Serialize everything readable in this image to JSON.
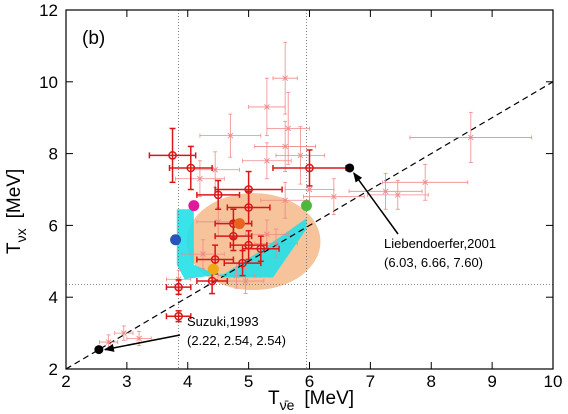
{
  "chart_data": {
    "type": "scatter",
    "panel_label": "(b)",
    "xlabel": "T",
    "xlabel_sub": "ν̄e",
    "xlabel_unit": "[MeV]",
    "ylabel": "T",
    "ylabel_sub": "νx",
    "ylabel_unit": "[MeV]",
    "xlim": [
      2,
      10
    ],
    "ylim": [
      2,
      12
    ],
    "xticks": [
      "2",
      "3",
      "4",
      "5",
      "6",
      "7",
      "8",
      "9",
      "10"
    ],
    "yticks": [
      "2",
      "4",
      "6",
      "8",
      "10",
      "12"
    ],
    "grid": false,
    "reference_lines": {
      "diagonal": {
        "slope": 1.0,
        "intercept": 0
      },
      "vertical_dotted": [
        3.85,
        5.95
      ],
      "horizontal_dotted": [
        4.35
      ]
    },
    "regions": {
      "ellipse": {
        "cx": 5.08,
        "cy": 5.55,
        "rx": 1.1,
        "ry": 1.35,
        "color": "#f4b88a"
      },
      "cyan_patch": [
        [
          3.82,
          6.45
        ],
        [
          4.1,
          6.45
        ],
        [
          4.1,
          4.9
        ],
        [
          4.6,
          4.55
        ],
        [
          5.4,
          4.55
        ],
        [
          5.95,
          5.9
        ],
        [
          5.95,
          6.2
        ],
        [
          5.2,
          5.3
        ],
        [
          4.6,
          4.65
        ],
        [
          3.95,
          4.5
        ],
        [
          3.82,
          4.9
        ]
      ],
      "cyan_color": "#22e0e8"
    },
    "colored_points": [
      {
        "x": 4.1,
        "y": 6.55,
        "color": "#e0199a"
      },
      {
        "x": 3.8,
        "y": 5.6,
        "color": "#2a55b8"
      },
      {
        "x": 4.85,
        "y": 6.05,
        "color": "#e8641e"
      },
      {
        "x": 5.95,
        "y": 6.55,
        "color": "#4cb83c"
      },
      {
        "x": 4.42,
        "y": 4.78,
        "color": "#f0a818"
      }
    ],
    "red_points": [
      {
        "x": 3.75,
        "y": 7.95,
        "xerr": 0.38,
        "yerr": 0.75
      },
      {
        "x": 4.05,
        "y": 7.6,
        "xerr": 0.35,
        "yerr": 0.6
      },
      {
        "x": 5.0,
        "y": 7.0,
        "xerr": 0.55,
        "yerr": 0.5
      },
      {
        "x": 6.0,
        "y": 7.6,
        "xerr": 0.6,
        "yerr": 0.5
      },
      {
        "x": 4.5,
        "y": 6.85,
        "xerr": 0.35,
        "yerr": 0.4
      },
      {
        "x": 5.0,
        "y": 6.5,
        "xerr": 0.35,
        "yerr": 0.45
      },
      {
        "x": 4.75,
        "y": 6.05,
        "xerr": 0.3,
        "yerr": 0.4
      },
      {
        "x": 4.75,
        "y": 5.7,
        "xerr": 0.3,
        "yerr": 0.4
      },
      {
        "x": 5.0,
        "y": 5.45,
        "xerr": 0.3,
        "yerr": 0.4
      },
      {
        "x": 5.2,
        "y": 5.35,
        "xerr": 0.3,
        "yerr": 0.35
      },
      {
        "x": 4.45,
        "y": 5.05,
        "xerr": 0.3,
        "yerr": 0.4
      },
      {
        "x": 4.9,
        "y": 4.95,
        "xerr": 0.3,
        "yerr": 0.35
      },
      {
        "x": 4.4,
        "y": 4.45,
        "xerr": 0.25,
        "yerr": 0.35
      },
      {
        "x": 3.85,
        "y": 4.28,
        "xerr": 0.2,
        "yerr": 0.2
      },
      {
        "x": 3.85,
        "y": 3.47,
        "xerr": 0.2,
        "yerr": 0.15
      }
    ],
    "faint_points": [
      {
        "x": 5.6,
        "y": 10.1,
        "xerr": 0.2,
        "yerr": 1.0
      },
      {
        "x": 5.3,
        "y": 9.3,
        "xerr": 0.3,
        "yerr": 0.8
      },
      {
        "x": 5.65,
        "y": 8.7,
        "xerr": 0.35,
        "yerr": 1.0
      },
      {
        "x": 5.85,
        "y": 7.95,
        "xerr": 0.4,
        "yerr": 0.8
      },
      {
        "x": 5.6,
        "y": 8.2,
        "xerr": 0.5,
        "yerr": 0.7
      },
      {
        "x": 4.7,
        "y": 8.5,
        "xerr": 0.5,
        "yerr": 0.6
      },
      {
        "x": 4.2,
        "y": 7.3,
        "xerr": 0.4,
        "yerr": 0.5
      },
      {
        "x": 4.45,
        "y": 7.55,
        "xerr": 0.4,
        "yerr": 0.5
      },
      {
        "x": 5.3,
        "y": 7.8,
        "xerr": 0.4,
        "yerr": 0.5
      },
      {
        "x": 8.65,
        "y": 8.45,
        "xerr": 1.0,
        "yerr": 0.7
      },
      {
        "x": 7.9,
        "y": 7.2,
        "xerr": 0.7,
        "yerr": 0.5
      },
      {
        "x": 7.25,
        "y": 6.95,
        "xerr": 0.6,
        "yerr": 0.5
      },
      {
        "x": 7.45,
        "y": 6.85,
        "xerr": 0.5,
        "yerr": 0.4
      },
      {
        "x": 6.4,
        "y": 6.8,
        "xerr": 0.5,
        "yerr": 0.5
      },
      {
        "x": 6.0,
        "y": 7.0,
        "xerr": 0.4,
        "yerr": 0.5
      },
      {
        "x": 5.6,
        "y": 6.7,
        "xerr": 0.4,
        "yerr": 0.5
      },
      {
        "x": 4.5,
        "y": 6.1,
        "xerr": 0.35,
        "yerr": 0.4
      },
      {
        "x": 5.3,
        "y": 5.75,
        "xerr": 0.35,
        "yerr": 0.4
      },
      {
        "x": 5.45,
        "y": 5.5,
        "xerr": 0.35,
        "yerr": 0.4
      },
      {
        "x": 4.25,
        "y": 5.2,
        "xerr": 0.35,
        "yerr": 0.4
      },
      {
        "x": 4.8,
        "y": 4.6,
        "xerr": 0.3,
        "yerr": 0.35
      },
      {
        "x": 4.95,
        "y": 4.45,
        "xerr": 0.3,
        "yerr": 0.35
      },
      {
        "x": 3.85,
        "y": 4.5,
        "xerr": 0.2,
        "yerr": 0.25
      },
      {
        "x": 2.95,
        "y": 3.0,
        "xerr": 0.15,
        "yerr": 0.2
      },
      {
        "x": 3.2,
        "y": 2.85,
        "xerr": 0.2,
        "yerr": 0.2
      },
      {
        "x": 2.7,
        "y": 2.75,
        "xerr": 0.15,
        "yerr": 0.2
      }
    ],
    "black_points": [
      {
        "x": 6.66,
        "y": 7.6
      },
      {
        "x": 2.54,
        "y": 2.54
      }
    ],
    "annotations": [
      {
        "line1": "Liebendoerfer,2001",
        "line2": "(6.03, 6.66, 7.60)"
      },
      {
        "line1": "Suzuki,1993",
        "line2": "(2.22, 2.54, 2.54)"
      }
    ],
    "colors": {
      "red": "#d81818",
      "faint": "#f08888",
      "black": "#000000",
      "diagonal": "#000000"
    }
  }
}
